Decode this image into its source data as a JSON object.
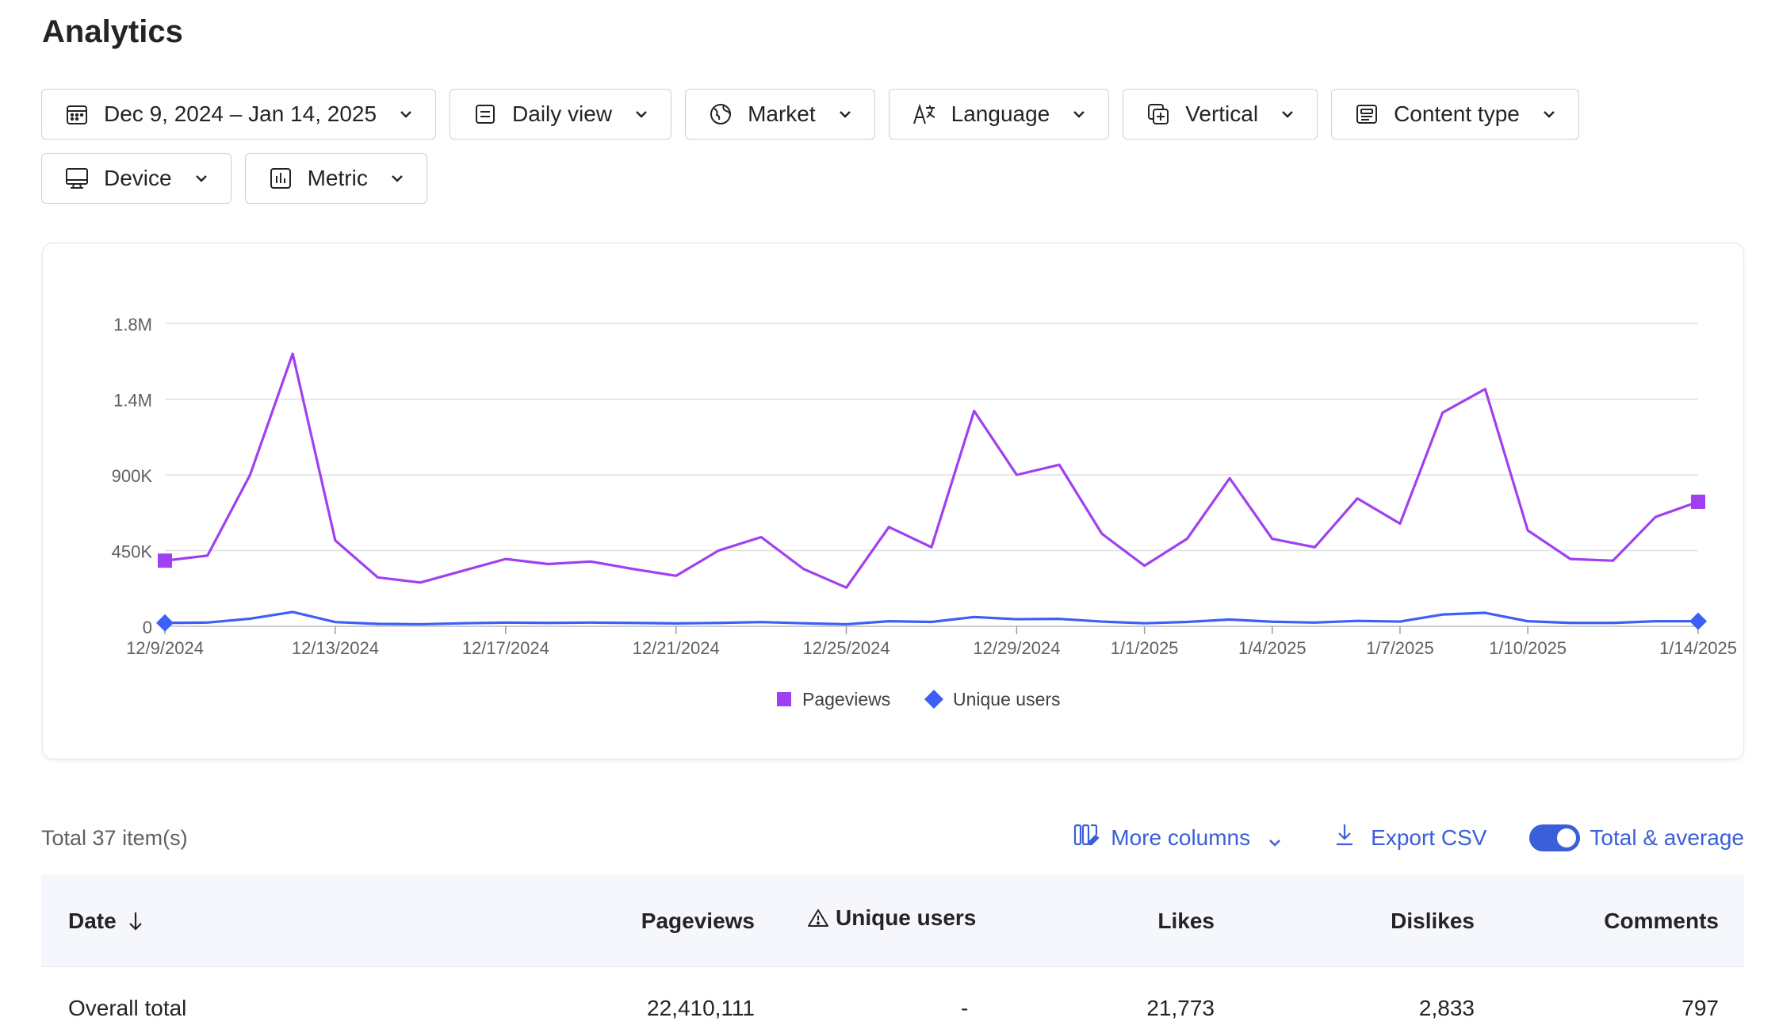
{
  "page": {
    "title": "Analytics"
  },
  "filters": [
    {
      "label": "Dec 9, 2024 – Jan 14, 2025",
      "icon": "calendar-icon"
    },
    {
      "label": "Daily view",
      "icon": "view-icon"
    },
    {
      "label": "Market",
      "icon": "globe-icon"
    },
    {
      "label": "Language",
      "icon": "language-icon"
    },
    {
      "label": "Vertical",
      "icon": "vertical-icon"
    },
    {
      "label": "Content type",
      "icon": "content-type-icon"
    },
    {
      "label": "Device",
      "icon": "monitor-icon"
    },
    {
      "label": "Metric",
      "icon": "bar-chart-icon"
    }
  ],
  "chart_data": {
    "type": "line",
    "x": [
      "12/9/2024",
      "12/10/2024",
      "12/11/2024",
      "12/12/2024",
      "12/13/2024",
      "12/14/2024",
      "12/15/2024",
      "12/16/2024",
      "12/17/2024",
      "12/18/2024",
      "12/19/2024",
      "12/20/2024",
      "12/21/2024",
      "12/22/2024",
      "12/23/2024",
      "12/24/2024",
      "12/25/2024",
      "12/26/2024",
      "12/27/2024",
      "12/28/2024",
      "12/29/2024",
      "12/30/2024",
      "12/31/2024",
      "1/1/2025",
      "1/2/2025",
      "1/3/2025",
      "1/4/2025",
      "1/5/2025",
      "1/6/2025",
      "1/7/2025",
      "1/8/2025",
      "1/9/2025",
      "1/10/2025",
      "1/11/2025",
      "1/12/2025",
      "1/13/2025",
      "1/14/2025"
    ],
    "xticks": [
      "12/9/2024",
      "12/13/2024",
      "12/17/2024",
      "12/21/2024",
      "12/25/2024",
      "12/29/2024",
      "1/1/2025",
      "1/4/2025",
      "1/7/2025",
      "1/10/2025",
      "1/14/2025"
    ],
    "yticks": [
      {
        "value": 0,
        "label": "0"
      },
      {
        "value": 450000,
        "label": "450K"
      },
      {
        "value": 900000,
        "label": "900K"
      },
      {
        "value": 1350000,
        "label": "1.4M"
      },
      {
        "value": 1800000,
        "label": "1.8M"
      }
    ],
    "ylim": [
      0,
      1800000
    ],
    "grid": true,
    "legend_position": "bottom-center",
    "series": [
      {
        "name": "Pageviews",
        "color": "#a040f0",
        "marker": "square",
        "values": [
          390000,
          420000,
          900000,
          1620000,
          510000,
          290000,
          260000,
          330000,
          400000,
          370000,
          385000,
          340000,
          300000,
          450000,
          530000,
          340000,
          230000,
          590000,
          470000,
          1280000,
          900000,
          960000,
          550000,
          360000,
          520000,
          880000,
          520000,
          470000,
          760000,
          610000,
          1270000,
          1410000,
          570000,
          400000,
          390000,
          650000,
          740000
        ]
      },
      {
        "name": "Unique users",
        "color": "#3d5ff5",
        "marker": "diamond",
        "values": [
          20000,
          22000,
          45000,
          85000,
          25000,
          14000,
          12000,
          18000,
          22000,
          20000,
          22000,
          20000,
          17000,
          20000,
          25000,
          18000,
          12000,
          30000,
          26000,
          55000,
          42000,
          44000,
          28000,
          18000,
          26000,
          40000,
          27000,
          22000,
          32000,
          28000,
          70000,
          80000,
          30000,
          20000,
          20000,
          30000,
          30000
        ]
      }
    ]
  },
  "toolbar": {
    "total_items": "Total 37 item(s)",
    "more_columns": "More columns",
    "export_csv": "Export CSV",
    "total_average": "Total & average",
    "total_average_on": true
  },
  "table": {
    "headers": {
      "date": "Date",
      "pageviews": "Pageviews",
      "unique_users": "Unique users",
      "likes": "Likes",
      "dislikes": "Dislikes",
      "comments": "Comments"
    },
    "rows": [
      {
        "date": "Overall total",
        "pageviews": "22,410,111",
        "unique_users": "-",
        "likes": "21,773",
        "dislikes": "2,833",
        "comments": "797"
      }
    ]
  }
}
